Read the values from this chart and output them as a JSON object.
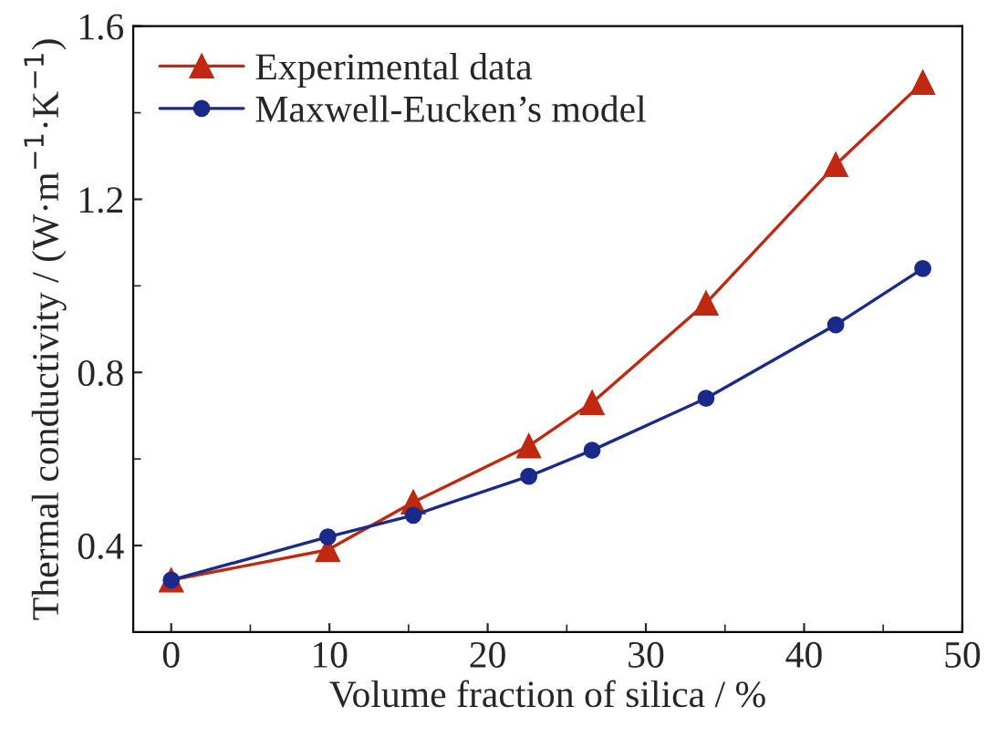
{
  "chart_data": {
    "type": "line",
    "xlabel": "Volume fraction of silica / %",
    "ylabel": "Thermal conductivity / (W·m$^{−1}$·K$^{−1}$)",
    "x": [
      0,
      9.9,
      15.3,
      22.6,
      26.6,
      33.8,
      42.0,
      47.5
    ],
    "series": [
      {
        "name": "Experimental data",
        "color": "#c0280f",
        "marker": "triangle",
        "values": [
          0.32,
          0.39,
          0.5,
          0.63,
          0.73,
          0.96,
          1.28,
          1.47
        ]
      },
      {
        "name": "Maxwell-Eucken’s model",
        "color": "#1a2a8a",
        "marker": "circle",
        "values": [
          0.32,
          0.42,
          0.47,
          0.56,
          0.62,
          0.74,
          0.91,
          1.04
        ]
      }
    ],
    "xlim": [
      -2.4,
      50
    ],
    "xticks": [
      0,
      10,
      20,
      30,
      40,
      50
    ],
    "ylim": [
      0.2,
      1.6
    ],
    "yticks": [
      {
        "value": 0.4,
        "label": "0.4"
      },
      {
        "value": 0.8,
        "label": "0.8"
      },
      {
        "value": 1.2,
        "label": "1.2"
      },
      {
        "value": 1.6,
        "label": "1.6"
      }
    ],
    "legend": "top left",
    "grid": false,
    "line_style": "solid"
  }
}
